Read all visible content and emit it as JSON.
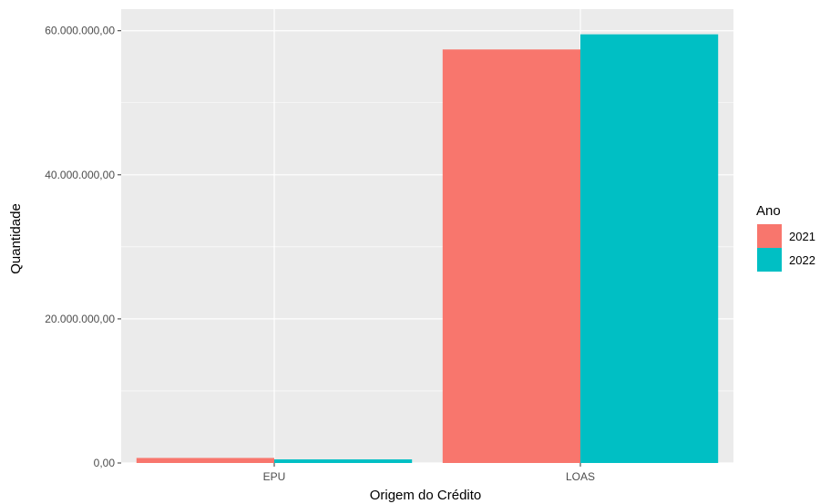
{
  "chart_data": {
    "type": "bar",
    "categories": [
      "EPU",
      "LOAS"
    ],
    "series": [
      {
        "name": "2021",
        "color": "#F8766D",
        "values": [
          700000,
          57400000
        ]
      },
      {
        "name": "2022",
        "color": "#00BFC4",
        "values": [
          500000,
          59500000
        ]
      }
    ],
    "xlabel": "Origem do Crédito",
    "ylabel": "Quantidade",
    "ylim": [
      0,
      63000000
    ],
    "yticks": [
      0,
      20000000,
      40000000,
      60000000
    ],
    "ytick_labels": [
      "0,00",
      "20.000.000,00",
      "40.000.000,00",
      "60.000.000,00"
    ],
    "legend": {
      "title": "Ano",
      "position": "right"
    },
    "grid": true,
    "panel_background": "#EBEBEB",
    "grid_color": "#FFFFFF"
  }
}
